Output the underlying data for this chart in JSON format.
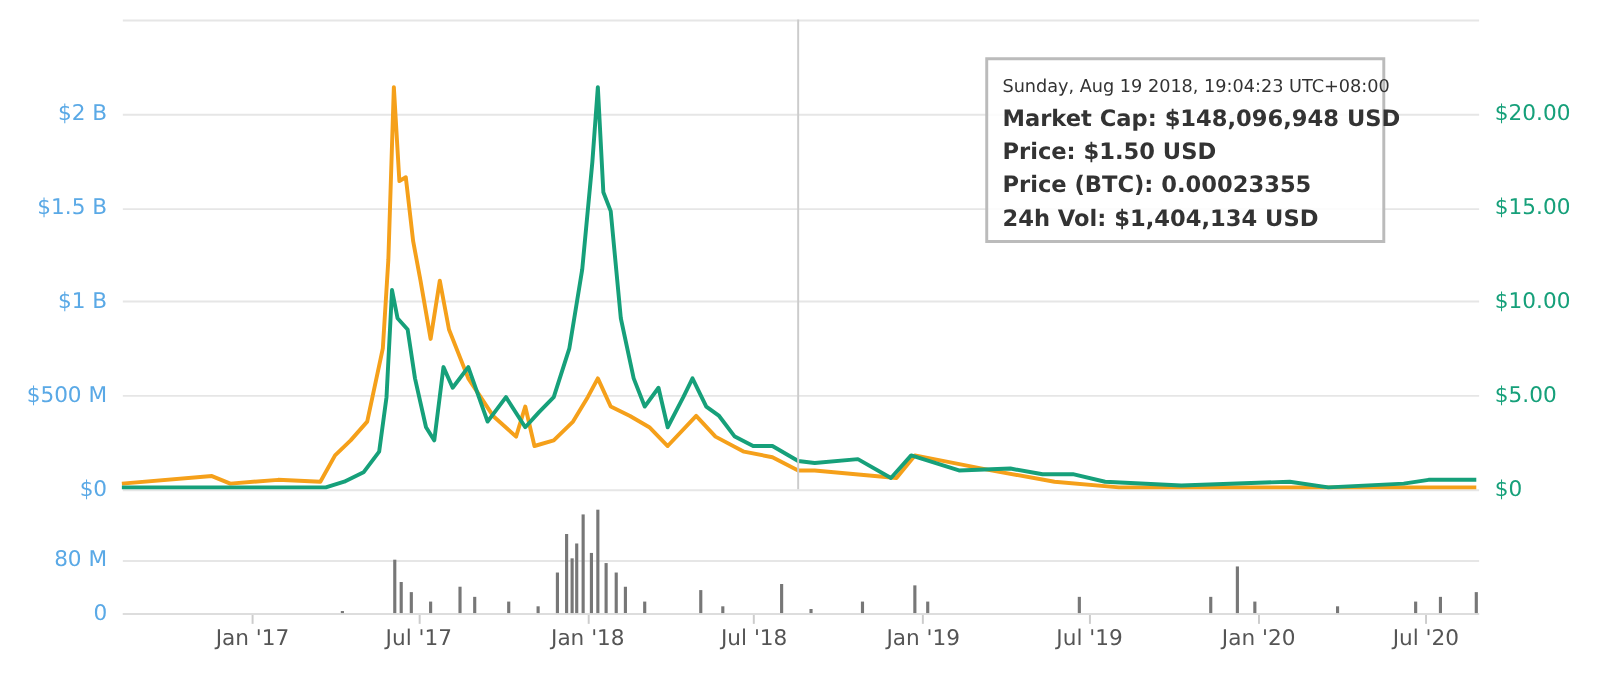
{
  "chart_data": [
    {
      "type": "line",
      "xlim": [
        "2016-08-13",
        "2020-08-28"
      ],
      "ylim": [
        0,
        2500000000
      ],
      "yticks": [
        {
          "value": 0,
          "label": "$0"
        },
        {
          "value": 500000000,
          "label": "$500 M"
        },
        {
          "value": 1000000000,
          "label": "$1 B"
        },
        {
          "value": 1500000000,
          "label": "$1.5 B"
        },
        {
          "value": 2000000000,
          "label": "$2 B"
        },
        {
          "value": 2500000000,
          "label": null
        }
      ],
      "y2lim": [
        0,
        25
      ],
      "y2ticks": [
        {
          "value": 0,
          "label": "$0"
        },
        {
          "value": 5,
          "label": "$5.00"
        },
        {
          "value": 10,
          "label": "$10.00"
        },
        {
          "value": 15,
          "label": "$15.00"
        },
        {
          "value": 20,
          "label": "$20.00"
        }
      ],
      "grid": "y",
      "legend": false,
      "tick_labels": "y",
      "ref_lines": [
        {
          "axis": "x",
          "value": "2018-08-19",
          "label": null
        }
      ],
      "annotations": [
        "Sunday, Aug 19 2018, 19:04:23 UTC+08:00",
        "Market Cap: $148,096,948 USD",
        "Price: $1.50 USD",
        "Price (BTC): 0.00023355",
        "24h Vol: $1,404,134 USD"
      ],
      "series": [
        {
          "color": "#f5a01a",
          "x": [
            "2016-08-13",
            "2016-11-19",
            "2016-12-09",
            "2017-01-30",
            "2017-03-17",
            "2017-04-02",
            "2017-04-19",
            "2017-05-07",
            "2017-05-24",
            "2017-05-30",
            "2017-06-05",
            "2017-06-11",
            "2017-06-18",
            "2017-06-26",
            "2017-07-04",
            "2017-07-15",
            "2017-07-25",
            "2017-08-04",
            "2017-08-25",
            "2017-09-21",
            "2017-10-16",
            "2017-10-26",
            "2017-11-05",
            "2017-11-26",
            "2017-12-17",
            "2018-01-02",
            "2018-01-13",
            "2018-01-27",
            "2018-02-17",
            "2018-03-10",
            "2018-03-30",
            "2018-04-30",
            "2018-05-21",
            "2018-06-21",
            "2018-07-22",
            "2018-08-19",
            "2018-09-06",
            "2018-12-04",
            "2018-12-24",
            "2019-03-17",
            "2019-05-25",
            "2019-08-03",
            "2020-08-26"
          ],
          "values": [
            30000000,
            70000000,
            30000000,
            50000000,
            40000000,
            180000000,
            260000000,
            360000000,
            750000000,
            1220000000,
            2140000000,
            1640000000,
            1660000000,
            1320000000,
            1110000000,
            800000000,
            1110000000,
            850000000,
            590000000,
            390000000,
            280000000,
            440000000,
            230000000,
            260000000,
            360000000,
            490000000,
            590000000,
            440000000,
            390000000,
            330000000,
            230000000,
            390000000,
            280000000,
            200000000,
            170000000,
            100000000,
            100000000,
            60000000,
            180000000,
            100000000,
            40000000,
            10000000,
            10000000
          ]
        },
        {
          "color": "#16a07a",
          "axis": "y2",
          "x": [
            "2016-08-13",
            "2017-03-23",
            "2017-04-12",
            "2017-05-03",
            "2017-05-20",
            "2017-05-28",
            "2017-06-03",
            "2017-06-09",
            "2017-06-20",
            "2017-06-28",
            "2017-07-10",
            "2017-07-19",
            "2017-07-29",
            "2017-08-08",
            "2017-08-25",
            "2017-09-15",
            "2017-10-05",
            "2017-10-26",
            "2017-11-10",
            "2017-11-26",
            "2017-12-13",
            "2017-12-27",
            "2018-01-07",
            "2018-01-13",
            "2018-01-19",
            "2018-01-27",
            "2018-02-07",
            "2018-02-21",
            "2018-03-05",
            "2018-03-20",
            "2018-03-30",
            "2018-04-16",
            "2018-04-26",
            "2018-05-11",
            "2018-05-25",
            "2018-06-11",
            "2018-07-01",
            "2018-07-22",
            "2018-08-19",
            "2018-09-06",
            "2018-10-23",
            "2018-11-28",
            "2018-12-20",
            "2019-02-10",
            "2019-04-07",
            "2019-05-12",
            "2019-06-14",
            "2019-07-19",
            "2019-10-10",
            "2020-02-05",
            "2020-03-18",
            "2020-06-08",
            "2020-07-05",
            "2020-08-26"
          ],
          "values": [
            0.1,
            0.1,
            0.4,
            0.9,
            2.0,
            4.9,
            10.6,
            9.1,
            8.5,
            5.9,
            3.3,
            2.6,
            6.5,
            5.4,
            6.5,
            3.6,
            4.9,
            3.3,
            4.1,
            4.9,
            7.5,
            11.7,
            17.4,
            21.4,
            15.8,
            14.8,
            9.1,
            5.9,
            4.4,
            5.4,
            3.3,
            4.9,
            5.9,
            4.4,
            3.9,
            2.8,
            2.3,
            2.3,
            1.5,
            1.4,
            1.6,
            0.6,
            1.8,
            1.0,
            1.1,
            0.8,
            0.8,
            0.4,
            0.2,
            0.4,
            0.1,
            0.3,
            0.5,
            0.5
          ]
        }
      ]
    },
    {
      "type": "bar",
      "xlim": [
        "2016-08-13",
        "2020-08-28"
      ],
      "ylim": [
        0,
        160000000
      ],
      "yticks": [
        {
          "value": 0,
          "label": "0"
        },
        {
          "value": 80000000,
          "label": "80 M"
        }
      ],
      "xticks": [
        {
          "value": "2017-01-01",
          "label": "Jan '17"
        },
        {
          "value": "2017-07-01",
          "label": "Jul '17"
        },
        {
          "value": "2018-01-01",
          "label": "Jan '18"
        },
        {
          "value": "2018-07-01",
          "label": "Jul '18"
        },
        {
          "value": "2019-01-01",
          "label": "Jan '19"
        },
        {
          "value": "2019-07-01",
          "label": "Jul '19"
        },
        {
          "value": "2020-01-01",
          "label": "Jan '20"
        },
        {
          "value": "2020-07-01",
          "label": "Jul '20"
        }
      ],
      "grid": "y",
      "legend": false,
      "series": [
        {
          "color": "#777777",
          "x": [
            "2017-04-10",
            "2017-06-06",
            "2017-06-13",
            "2017-06-24",
            "2017-07-15",
            "2017-08-16",
            "2017-09-01",
            "2017-10-08",
            "2017-11-09",
            "2017-11-30",
            "2017-12-10",
            "2017-12-16",
            "2017-12-21",
            "2017-12-28",
            "2018-01-06",
            "2018-01-13",
            "2018-01-22",
            "2018-02-02",
            "2018-02-12",
            "2018-03-05",
            "2018-05-05",
            "2018-05-29",
            "2018-08-01",
            "2018-09-02",
            "2018-10-28",
            "2018-12-24",
            "2019-01-07",
            "2019-06-21",
            "2019-11-11",
            "2019-12-10",
            "2019-12-29",
            "2020-03-28",
            "2020-06-21",
            "2020-07-18",
            "2020-08-26"
          ],
          "values": [
            3000000,
            79000000,
            46000000,
            31000000,
            17000000,
            39000000,
            24000000,
            17000000,
            10000000,
            60000000,
            117000000,
            81000000,
            103000000,
            146000000,
            89000000,
            153000000,
            74000000,
            60000000,
            39000000,
            17000000,
            34000000,
            10000000,
            43000000,
            6000000,
            17000000,
            41000000,
            17000000,
            24000000,
            24000000,
            69000000,
            17000000,
            10000000,
            17000000,
            24000000,
            31000000
          ]
        }
      ]
    }
  ]
}
